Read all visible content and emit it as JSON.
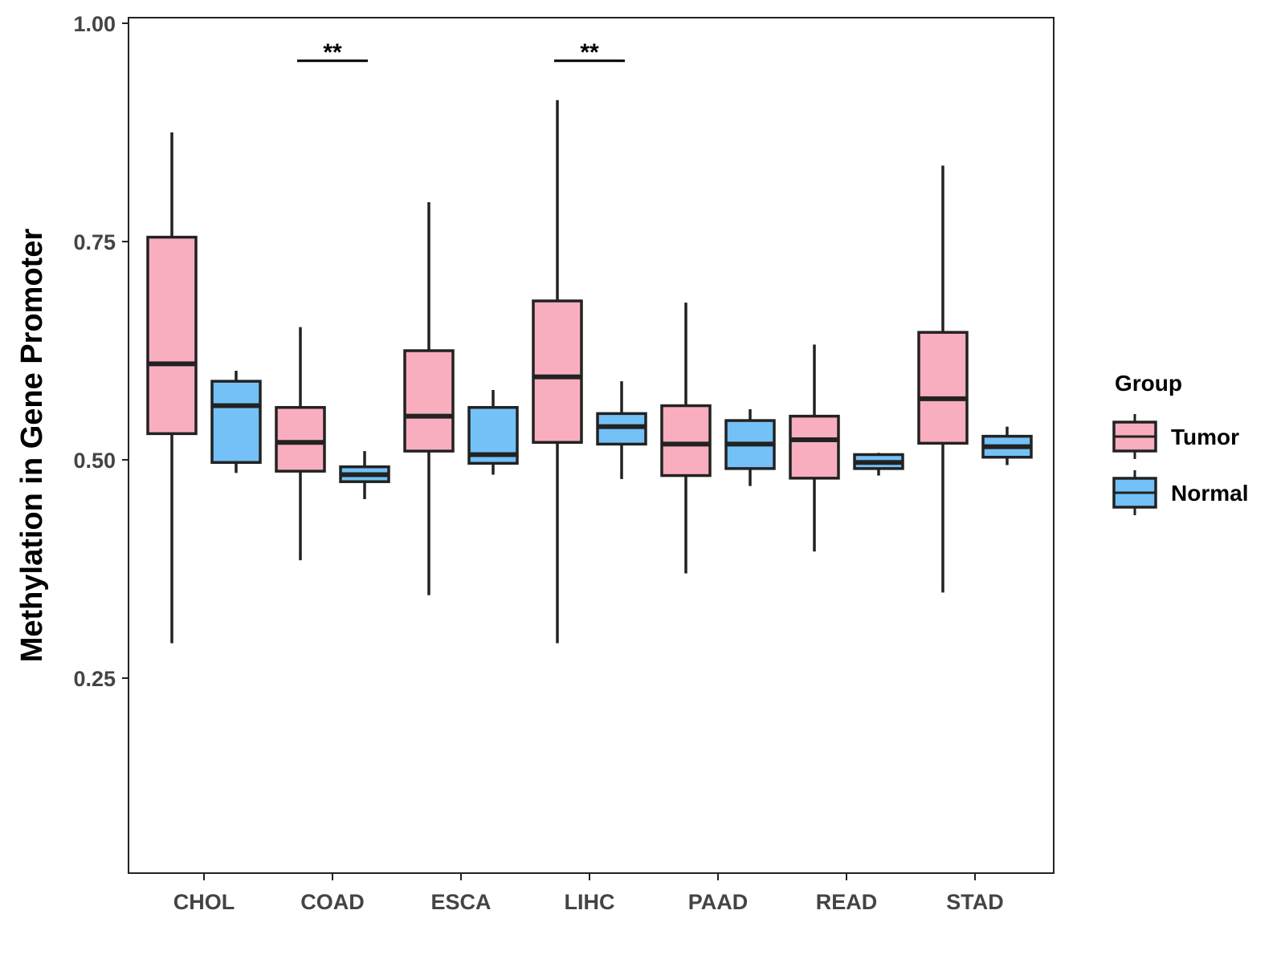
{
  "chart_data": {
    "type": "boxplot",
    "title": "",
    "xlabel": "",
    "ylabel": "Methylation in Gene Promoter",
    "ylim": [
      0.025,
      1.0
    ],
    "yticks": [
      "0.25",
      "0.50",
      "0.75",
      "1.00"
    ],
    "categories": [
      "CHOL",
      "COAD",
      "ESCA",
      "LIHC",
      "PAAD",
      "READ",
      "STAD"
    ],
    "legend": {
      "title": "Group",
      "position": "right",
      "entries": [
        "Tumor",
        "Normal"
      ]
    },
    "colors": {
      "Tumor": "#F9AEBF",
      "Normal": "#74C1F7",
      "outline": "#222222"
    },
    "series": [
      {
        "name": "Tumor",
        "boxes": [
          {
            "min": 0.29,
            "q1": 0.53,
            "median": 0.61,
            "q3": 0.755,
            "max": 0.875
          },
          {
            "min": 0.385,
            "q1": 0.487,
            "median": 0.52,
            "q3": 0.56,
            "max": 0.652
          },
          {
            "min": 0.345,
            "q1": 0.51,
            "median": 0.55,
            "q3": 0.625,
            "max": 0.795
          },
          {
            "min": 0.29,
            "q1": 0.52,
            "median": 0.595,
            "q3": 0.682,
            "max": 0.912
          },
          {
            "min": 0.37,
            "q1": 0.482,
            "median": 0.518,
            "q3": 0.562,
            "max": 0.68
          },
          {
            "min": 0.395,
            "q1": 0.479,
            "median": 0.523,
            "q3": 0.55,
            "max": 0.632
          },
          {
            "min": 0.348,
            "q1": 0.519,
            "median": 0.57,
            "q3": 0.646,
            "max": 0.837
          }
        ]
      },
      {
        "name": "Normal",
        "boxes": [
          {
            "min": 0.485,
            "q1": 0.497,
            "median": 0.562,
            "q3": 0.59,
            "max": 0.602
          },
          {
            "min": 0.455,
            "q1": 0.475,
            "median": 0.483,
            "q3": 0.492,
            "max": 0.51
          },
          {
            "min": 0.483,
            "q1": 0.496,
            "median": 0.506,
            "q3": 0.56,
            "max": 0.58
          },
          {
            "min": 0.478,
            "q1": 0.518,
            "median": 0.538,
            "q3": 0.553,
            "max": 0.59
          },
          {
            "min": 0.47,
            "q1": 0.49,
            "median": 0.518,
            "q3": 0.545,
            "max": 0.558
          },
          {
            "min": 0.482,
            "q1": 0.49,
            "median": 0.497,
            "q3": 0.506,
            "max": 0.508
          },
          {
            "min": 0.494,
            "q1": 0.503,
            "median": 0.515,
            "q3": 0.527,
            "max": 0.538
          }
        ]
      }
    ],
    "annotations": [
      {
        "category": "COAD",
        "text": "**",
        "y": 0.957
      },
      {
        "category": "LIHC",
        "text": "**",
        "y": 0.957
      }
    ]
  }
}
